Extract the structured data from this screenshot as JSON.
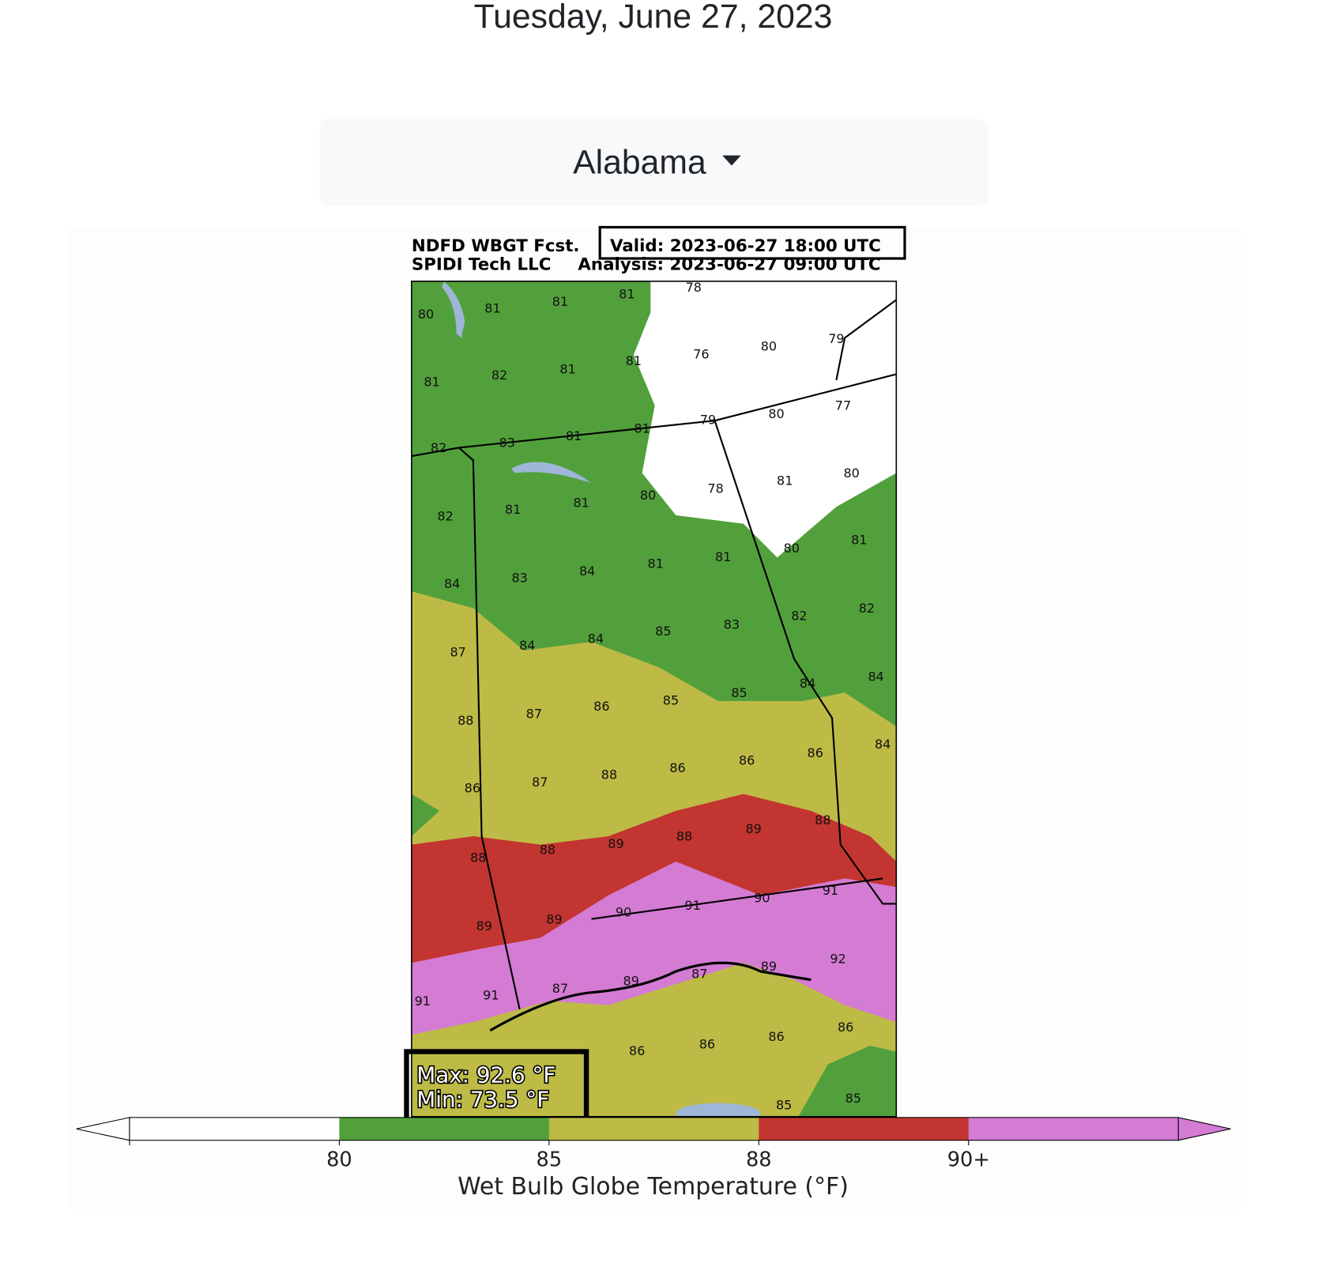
{
  "header": {
    "date": "Tuesday, June 27, 2023"
  },
  "dropdown": {
    "label": "Alabama"
  },
  "map": {
    "title_left": "NDFD WBGT Fcst.",
    "valid": "Valid: 2023-06-27 18:00 UTC",
    "source": "SPIDI Tech LLC",
    "analysis": "Analysis: 2023-06-27 09:00 UTC",
    "labels": [
      80,
      81,
      81,
      81,
      78,
      80,
      79,
      76,
      81,
      81,
      82,
      81,
      77,
      80,
      79,
      81,
      81,
      83,
      82,
      80,
      81,
      78,
      80,
      81,
      81,
      82,
      81,
      80,
      81,
      81,
      84,
      83,
      84,
      82,
      82,
      83,
      85,
      84,
      84,
      87,
      84,
      84,
      85,
      85,
      86,
      87,
      88,
      84,
      86,
      86,
      86,
      88,
      87,
      86,
      88,
      89,
      88,
      89,
      88,
      88,
      91,
      90,
      91,
      90,
      89,
      89,
      92,
      89,
      87,
      89,
      87,
      91,
      91,
      86,
      86,
      86,
      86,
      85,
      85
    ],
    "stats": [
      "Max: 92.6 °F",
      "Min: 73.5 °F"
    ]
  },
  "colorbar": {
    "label": "Wet Bulb Globe Temperature (°F)",
    "ticks": [
      80,
      85,
      88,
      {
        "value": 90,
        "label": "90+"
      }
    ],
    "colors": [
      "#ffffff",
      "#52a03c",
      "#bdbb45",
      "#c33530",
      "#d47bd4"
    ]
  }
}
